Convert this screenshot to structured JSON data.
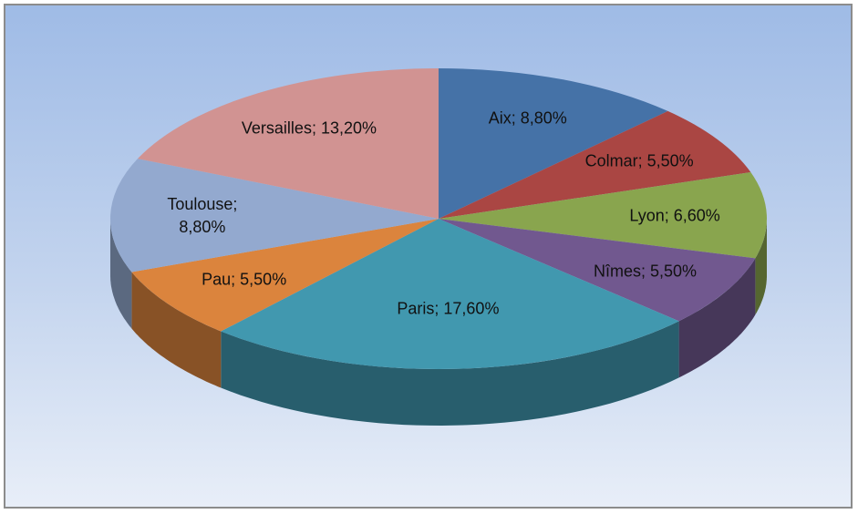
{
  "chart_data": {
    "type": "pie",
    "values": [
      8.8,
      5.5,
      6.6,
      5.5,
      17.6,
      5.5,
      8.8,
      13.2
    ],
    "value_labels": [
      "Aix; 8,80%",
      "Colmar; 5,50%",
      "Lyon; 6,60%",
      "Nîmes; 5,50%",
      "Paris; 17,60%",
      "Pau; 5,50%",
      "Toulouse; 8,80%",
      "Versailles; 13,20%"
    ],
    "colors": [
      "#4572a7",
      "#aa4643",
      "#89a54e",
      "#71588f",
      "#4198af",
      "#db843d",
      "#93a9cf",
      "#d19392"
    ]
  }
}
